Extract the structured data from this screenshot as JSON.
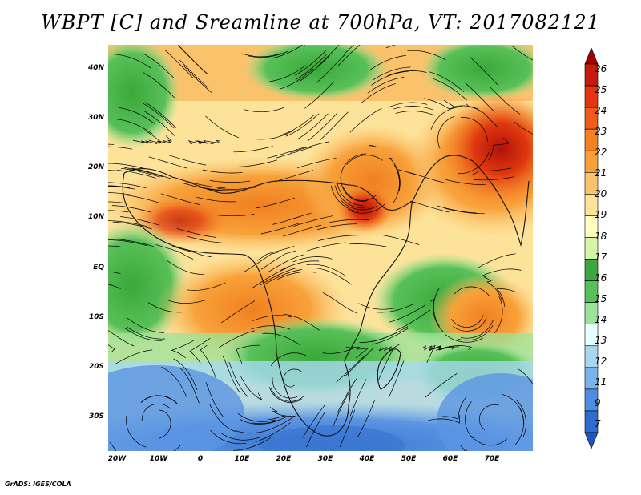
{
  "title": "WBPT [C] and Sreamline at 700hPa, VT: 2017082121",
  "map": {
    "lat_labels": [
      "40N",
      "30N",
      "20N",
      "10N",
      "EQ",
      "10S",
      "20S",
      "30S"
    ],
    "lat_values": [
      40,
      30,
      20,
      10,
      0,
      -10,
      -20,
      -30
    ],
    "lon_labels": [
      "20W",
      "10W",
      "0",
      "10E",
      "20E",
      "30E",
      "40E",
      "50E",
      "60E",
      "70E"
    ],
    "lon_values": [
      -20,
      -10,
      0,
      10,
      20,
      30,
      40,
      50,
      60,
      70
    ],
    "lat_range": [
      -37,
      45
    ],
    "lon_range": [
      -22,
      80
    ]
  },
  "colorbar": {
    "labels": [
      "26",
      "25",
      "24",
      "23",
      "22",
      "21",
      "20",
      "19",
      "18",
      "17",
      "16",
      "15",
      "14",
      "13",
      "12",
      "11",
      "9",
      "7"
    ],
    "colors": [
      "#a00000",
      "#c81a0a",
      "#e53510",
      "#f05a1a",
      "#f58220",
      "#f8a13a",
      "#fac26a",
      "#fde39a",
      "#ffffc0",
      "#d6f5a8",
      "#3aa83a",
      "#58c058",
      "#9ae39a",
      "#e6ffff",
      "#a8d8f0",
      "#78b4ea",
      "#4e8ee0",
      "#2e6ccf",
      "#1f55c2"
    ]
  },
  "credit": "GrADS: IGES/COLA"
}
